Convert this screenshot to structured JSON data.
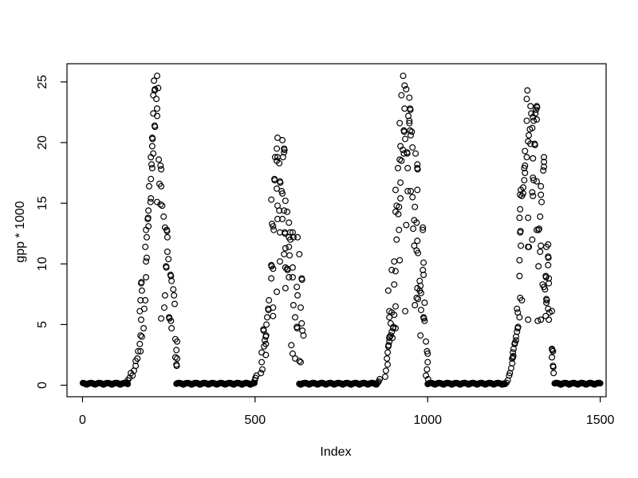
{
  "figure": {
    "background": "#ffffff",
    "foreground": "#000000"
  },
  "chart_data": {
    "type": "scatter",
    "title": "",
    "xlabel": "Index",
    "ylabel": "gpp * 1000",
    "x_ticks": [
      0,
      500,
      1000,
      1500
    ],
    "y_ticks": [
      0,
      5,
      10,
      15,
      20,
      25
    ],
    "x_range": [
      -45,
      1517
    ],
    "y_range": [
      -0.95,
      26.5
    ],
    "grid": false,
    "legend": "none",
    "marker": {
      "shape": "open-circle",
      "color": "#000000",
      "radius_px": 3.4
    },
    "n_points": 1500,
    "zero_value": 0.05,
    "zero_run_step": 2,
    "zero_runs": [
      [
        1,
        131
      ],
      [
        272,
        498
      ],
      [
        628,
        852
      ],
      [
        1000,
        1222
      ],
      [
        1368,
        1500
      ]
    ],
    "points": [
      [
        128,
        0.2
      ],
      [
        131,
        0.4
      ],
      [
        136,
        0.6
      ],
      [
        140,
        1.0
      ],
      [
        145,
        0.8
      ],
      [
        149,
        1.2
      ],
      [
        154,
        1.6
      ],
      [
        154,
        2.0
      ],
      [
        159,
        2.2
      ],
      [
        161,
        2.8
      ],
      [
        168,
        2.8
      ],
      [
        166,
        3.4
      ],
      [
        168,
        4.1
      ],
      [
        172,
        4.0
      ],
      [
        177,
        4.7
      ],
      [
        170,
        5.4
      ],
      [
        166,
        6.1
      ],
      [
        179,
        6.3
      ],
      [
        168,
        7.0
      ],
      [
        182,
        7.0
      ],
      [
        172,
        7.8
      ],
      [
        170,
        8.4
      ],
      [
        171,
        8.5
      ],
      [
        184,
        8.9
      ],
      [
        184,
        10.2
      ],
      [
        186,
        10.5
      ],
      [
        182,
        11.4
      ],
      [
        186,
        12.2
      ],
      [
        184,
        12.8
      ],
      [
        191,
        13.1
      ],
      [
        189,
        13.7
      ],
      [
        190,
        13.8
      ],
      [
        191,
        14.4
      ],
      [
        198,
        15.4
      ],
      [
        197,
        15.1
      ],
      [
        193,
        16.4
      ],
      [
        198,
        17.0
      ],
      [
        200,
        18.2
      ],
      [
        198,
        18.8
      ],
      [
        202,
        17.9
      ],
      [
        205,
        19.1
      ],
      [
        202,
        19.7
      ],
      [
        202,
        20.4
      ],
      [
        203,
        20.3
      ],
      [
        209,
        21.4
      ],
      [
        210,
        21.3
      ],
      [
        205,
        22.4
      ],
      [
        216,
        22.8
      ],
      [
        216,
        22.2
      ],
      [
        214,
        23.6
      ],
      [
        205,
        23.9
      ],
      [
        209,
        24.3
      ],
      [
        210,
        24.4
      ],
      [
        219,
        24.5
      ],
      [
        207,
        25.1
      ],
      [
        216,
        25.5
      ],
      [
        221,
        18.6
      ],
      [
        226,
        18.1
      ],
      [
        228,
        17.8
      ],
      [
        223,
        16.6
      ],
      [
        228,
        16.4
      ],
      [
        216,
        15.1
      ],
      [
        226,
        14.9
      ],
      [
        231,
        14.8
      ],
      [
        235,
        13.9
      ],
      [
        239,
        13.0
      ],
      [
        244,
        12.8
      ],
      [
        245,
        12.7
      ],
      [
        246,
        12.2
      ],
      [
        246,
        11.0
      ],
      [
        249,
        10.4
      ],
      [
        242,
        9.8
      ],
      [
        243,
        9.7
      ],
      [
        255,
        9.1
      ],
      [
        256,
        9.0
      ],
      [
        258,
        8.6
      ],
      [
        263,
        7.9
      ],
      [
        239,
        7.4
      ],
      [
        265,
        7.4
      ],
      [
        267,
        6.7
      ],
      [
        237,
        6.4
      ],
      [
        228,
        5.5
      ],
      [
        251,
        5.6
      ],
      [
        252,
        5.5
      ],
      [
        256,
        5.3
      ],
      [
        258,
        4.7
      ],
      [
        269,
        3.8
      ],
      [
        274,
        3.6
      ],
      [
        272,
        2.9
      ],
      [
        269,
        2.3
      ],
      [
        274,
        2.2
      ],
      [
        272,
        1.7
      ],
      [
        273,
        1.6
      ],
      [
        496,
        0.2
      ],
      [
        499,
        0.4
      ],
      [
        501,
        0.6
      ],
      [
        504,
        0.8
      ],
      [
        517,
        1.0
      ],
      [
        521,
        1.3
      ],
      [
        519,
        1.9
      ],
      [
        531,
        2.5
      ],
      [
        519,
        2.7
      ],
      [
        526,
        3.2
      ],
      [
        531,
        3.4
      ],
      [
        528,
        3.7
      ],
      [
        531,
        4.0
      ],
      [
        532,
        4.1
      ],
      [
        524,
        4.6
      ],
      [
        525,
        4.5
      ],
      [
        533,
        5.0
      ],
      [
        535,
        5.6
      ],
      [
        552,
        5.7
      ],
      [
        538,
        6.3
      ],
      [
        539,
        6.2
      ],
      [
        552,
        6.4
      ],
      [
        540,
        7.0
      ],
      [
        563,
        7.7
      ],
      [
        547,
        8.8
      ],
      [
        552,
        9.6
      ],
      [
        547,
        9.9
      ],
      [
        548,
        9.8
      ],
      [
        572,
        10.2
      ],
      [
        584,
        10.8
      ],
      [
        549,
        13.3
      ],
      [
        552,
        13.1
      ],
      [
        554,
        12.8
      ],
      [
        565,
        13.7
      ],
      [
        565,
        14.8
      ],
      [
        547,
        15.3
      ],
      [
        563,
        16.2
      ],
      [
        556,
        17.0
      ],
      [
        557,
        16.9
      ],
      [
        558,
        18.8
      ],
      [
        563,
        18.5
      ],
      [
        565,
        18.8
      ],
      [
        563,
        19.5
      ],
      [
        565,
        20.4
      ],
      [
        579,
        20.2
      ],
      [
        584,
        19.5
      ],
      [
        585,
        19.4
      ],
      [
        584,
        19.2
      ],
      [
        581,
        18.8
      ],
      [
        570,
        18.3
      ],
      [
        572,
        16.8
      ],
      [
        573,
        16.7
      ],
      [
        577,
        16.0
      ],
      [
        579,
        15.8
      ],
      [
        588,
        15.2
      ],
      [
        570,
        14.4
      ],
      [
        584,
        14.4
      ],
      [
        593,
        14.3
      ],
      [
        579,
        13.7
      ],
      [
        598,
        13.4
      ],
      [
        572,
        12.6
      ],
      [
        586,
        12.6
      ],
      [
        587,
        12.5
      ],
      [
        602,
        12.6
      ],
      [
        609,
        12.6
      ],
      [
        598,
        12.2
      ],
      [
        611,
        12.2
      ],
      [
        602,
        12.0
      ],
      [
        623,
        12.2
      ],
      [
        588,
        11.3
      ],
      [
        598,
        11.4
      ],
      [
        600,
        10.7
      ],
      [
        628,
        10.8
      ],
      [
        588,
        9.7
      ],
      [
        609,
        9.7
      ],
      [
        593,
        9.6
      ],
      [
        594,
        9.5
      ],
      [
        598,
        8.9
      ],
      [
        609,
        8.9
      ],
      [
        635,
        8.8
      ],
      [
        636,
        8.7
      ],
      [
        621,
        8.1
      ],
      [
        588,
        8.0
      ],
      [
        623,
        7.4
      ],
      [
        611,
        6.6
      ],
      [
        632,
        6.4
      ],
      [
        616,
        5.6
      ],
      [
        635,
        5.1
      ],
      [
        621,
        4.8
      ],
      [
        622,
        4.7
      ],
      [
        637,
        4.5
      ],
      [
        640,
        4.1
      ],
      [
        605,
        3.3
      ],
      [
        609,
        2.6
      ],
      [
        616,
        2.2
      ],
      [
        628,
        2.0
      ],
      [
        632,
        1.9
      ],
      [
        855,
        0.2
      ],
      [
        858,
        0.3
      ],
      [
        861,
        0.5
      ],
      [
        877,
        0.7
      ],
      [
        879,
        1.2
      ],
      [
        884,
        1.7
      ],
      [
        882,
        2.2
      ],
      [
        884,
        2.7
      ],
      [
        886,
        3.2
      ],
      [
        887,
        3.3
      ],
      [
        889,
        3.6
      ],
      [
        889,
        3.9
      ],
      [
        890,
        4.0
      ],
      [
        893,
        4.1
      ],
      [
        898,
        3.9
      ],
      [
        896,
        4.4
      ],
      [
        900,
        4.7
      ],
      [
        901,
        4.8
      ],
      [
        907,
        4.7
      ],
      [
        893,
        5.1
      ],
      [
        889,
        5.6
      ],
      [
        903,
        5.8
      ],
      [
        889,
        6.1
      ],
      [
        896,
        6.0
      ],
      [
        907,
        6.5
      ],
      [
        935,
        6.1
      ],
      [
        886,
        7.8
      ],
      [
        903,
        8.3
      ],
      [
        907,
        9.4
      ],
      [
        896,
        9.5
      ],
      [
        903,
        10.2
      ],
      [
        919,
        10.3
      ],
      [
        910,
        12.0
      ],
      [
        917,
        12.8
      ],
      [
        907,
        16.1
      ],
      [
        921,
        15.4
      ],
      [
        910,
        14.8
      ],
      [
        917,
        14.7
      ],
      [
        907,
        14.3
      ],
      [
        915,
        14.1
      ],
      [
        921,
        16.7
      ],
      [
        914,
        17.9
      ],
      [
        919,
        18.6
      ],
      [
        924,
        18.5
      ],
      [
        928,
        19.4
      ],
      [
        921,
        19.7
      ],
      [
        931,
        19.1
      ],
      [
        940,
        19.2
      ],
      [
        941,
        19.1
      ],
      [
        919,
        21.6
      ],
      [
        931,
        21.0
      ],
      [
        932,
        20.9
      ],
      [
        924,
        23.9
      ],
      [
        933,
        24.7
      ],
      [
        929,
        25.5
      ],
      [
        938,
        24.4
      ],
      [
        947,
        23.7
      ],
      [
        933,
        22.8
      ],
      [
        949,
        22.8
      ],
      [
        950,
        22.7
      ],
      [
        944,
        22.2
      ],
      [
        947,
        21.8
      ],
      [
        947,
        21.6
      ],
      [
        949,
        21.0
      ],
      [
        954,
        20.9
      ],
      [
        951,
        20.6
      ],
      [
        935,
        20.3
      ],
      [
        956,
        19.6
      ],
      [
        965,
        19.1
      ],
      [
        970,
        18.2
      ],
      [
        970,
        17.9
      ],
      [
        971,
        17.8
      ],
      [
        942,
        17.9
      ],
      [
        942,
        16.0
      ],
      [
        951,
        16.0
      ],
      [
        970,
        16.1
      ],
      [
        956,
        15.5
      ],
      [
        963,
        14.7
      ],
      [
        938,
        13.2
      ],
      [
        961,
        13.6
      ],
      [
        968,
        13.4
      ],
      [
        986,
        13.0
      ],
      [
        958,
        12.9
      ],
      [
        986,
        12.8
      ],
      [
        970,
        11.9
      ],
      [
        961,
        11.5
      ],
      [
        968,
        11.1
      ],
      [
        972,
        10.9
      ],
      [
        988,
        10.1
      ],
      [
        986,
        9.5
      ],
      [
        988,
        9.1
      ],
      [
        977,
        8.6
      ],
      [
        979,
        8.2
      ],
      [
        970,
        8.0
      ],
      [
        977,
        7.8
      ],
      [
        981,
        7.6
      ],
      [
        968,
        7.2
      ],
      [
        972,
        7.1
      ],
      [
        963,
        6.6
      ],
      [
        991,
        6.8
      ],
      [
        981,
        6.2
      ],
      [
        988,
        5.6
      ],
      [
        989,
        5.5
      ],
      [
        991,
        5.3
      ],
      [
        979,
        4.1
      ],
      [
        995,
        3.6
      ],
      [
        998,
        2.8
      ],
      [
        1000,
        2.6
      ],
      [
        1000,
        1.9
      ],
      [
        998,
        1.3
      ],
      [
        995,
        0.8
      ],
      [
        1001,
        0.5
      ],
      [
        1224,
        0.1
      ],
      [
        1228,
        0.2
      ],
      [
        1232,
        0.4
      ],
      [
        1236,
        0.8
      ],
      [
        1238,
        1.0
      ],
      [
        1242,
        1.4
      ],
      [
        1245,
        1.8
      ],
      [
        1245,
        2.2
      ],
      [
        1247,
        2.3
      ],
      [
        1248,
        2.4
      ],
      [
        1247,
        2.7
      ],
      [
        1249,
        3.0
      ],
      [
        1252,
        3.4
      ],
      [
        1253,
        3.5
      ],
      [
        1256,
        3.7
      ],
      [
        1256,
        4.0
      ],
      [
        1259,
        4.4
      ],
      [
        1261,
        4.7
      ],
      [
        1262,
        4.8
      ],
      [
        1266,
        5.6
      ],
      [
        1291,
        5.4
      ],
      [
        1259,
        6.3
      ],
      [
        1261,
        6.0
      ],
      [
        1268,
        7.2
      ],
      [
        1273,
        7.0
      ],
      [
        1266,
        9.0
      ],
      [
        1266,
        10.3
      ],
      [
        1270,
        11.5
      ],
      [
        1291,
        11.4
      ],
      [
        1268,
        12.6
      ],
      [
        1269,
        12.7
      ],
      [
        1287,
        23.6
      ],
      [
        1289,
        24.3
      ],
      [
        1298,
        23.0
      ],
      [
        1316,
        23.0
      ],
      [
        1317,
        22.9
      ],
      [
        1314,
        22.7
      ],
      [
        1312,
        22.4
      ],
      [
        1300,
        22.4
      ],
      [
        1305,
        22.1
      ],
      [
        1316,
        21.9
      ],
      [
        1287,
        21.8
      ],
      [
        1307,
        21.8
      ],
      [
        1296,
        21.1
      ],
      [
        1303,
        21.2
      ],
      [
        1293,
        20.6
      ],
      [
        1291,
        20.1
      ],
      [
        1298,
        19.9
      ],
      [
        1310,
        19.9
      ],
      [
        1311,
        19.8
      ],
      [
        1282,
        19.3
      ],
      [
        1287,
        18.8
      ],
      [
        1305,
        18.7
      ],
      [
        1282,
        18.1
      ],
      [
        1280,
        17.9
      ],
      [
        1337,
        18.8
      ],
      [
        1337,
        18.4
      ],
      [
        1337,
        18.0
      ],
      [
        1335,
        17.7
      ],
      [
        1282,
        17.5
      ],
      [
        1280,
        16.9
      ],
      [
        1305,
        17.1
      ],
      [
        1307,
        16.9
      ],
      [
        1316,
        16.8
      ],
      [
        1328,
        16.4
      ],
      [
        1277,
        16.3
      ],
      [
        1270,
        16.1
      ],
      [
        1277,
        15.8
      ],
      [
        1268,
        15.7
      ],
      [
        1273,
        15.6
      ],
      [
        1303,
        15.9
      ],
      [
        1305,
        15.6
      ],
      [
        1328,
        15.7
      ],
      [
        1330,
        15.1
      ],
      [
        1268,
        14.5
      ],
      [
        1266,
        13.8
      ],
      [
        1291,
        13.8
      ],
      [
        1326,
        13.9
      ],
      [
        1323,
        12.9
      ],
      [
        1321,
        12.8
      ],
      [
        1316,
        12.8
      ],
      [
        1303,
        12.0
      ],
      [
        1293,
        11.4
      ],
      [
        1328,
        11.5
      ],
      [
        1344,
        11.4
      ],
      [
        1349,
        11.6
      ],
      [
        1326,
        11.0
      ],
      [
        1349,
        10.6
      ],
      [
        1350,
        10.5
      ],
      [
        1349,
        9.9
      ],
      [
        1321,
        9.8
      ],
      [
        1351,
        8.8
      ],
      [
        1342,
        9.0
      ],
      [
        1343,
        8.9
      ],
      [
        1333,
        8.3
      ],
      [
        1337,
        8.1
      ],
      [
        1340,
        7.9
      ],
      [
        1351,
        8.4
      ],
      [
        1344,
        7.1
      ],
      [
        1345,
        7.0
      ],
      [
        1344,
        6.8
      ],
      [
        1349,
        6.3
      ],
      [
        1353,
        6.0
      ],
      [
        1360,
        6.1
      ],
      [
        1342,
        5.7
      ],
      [
        1351,
        5.4
      ],
      [
        1328,
        5.4
      ],
      [
        1319,
        5.3
      ],
      [
        1360,
        3.0
      ],
      [
        1361,
        2.9
      ],
      [
        1363,
        2.8
      ],
      [
        1360,
        2.3
      ],
      [
        1363,
        1.6
      ],
      [
        1364,
        1.5
      ],
      [
        1365,
        1.0
      ]
    ]
  }
}
